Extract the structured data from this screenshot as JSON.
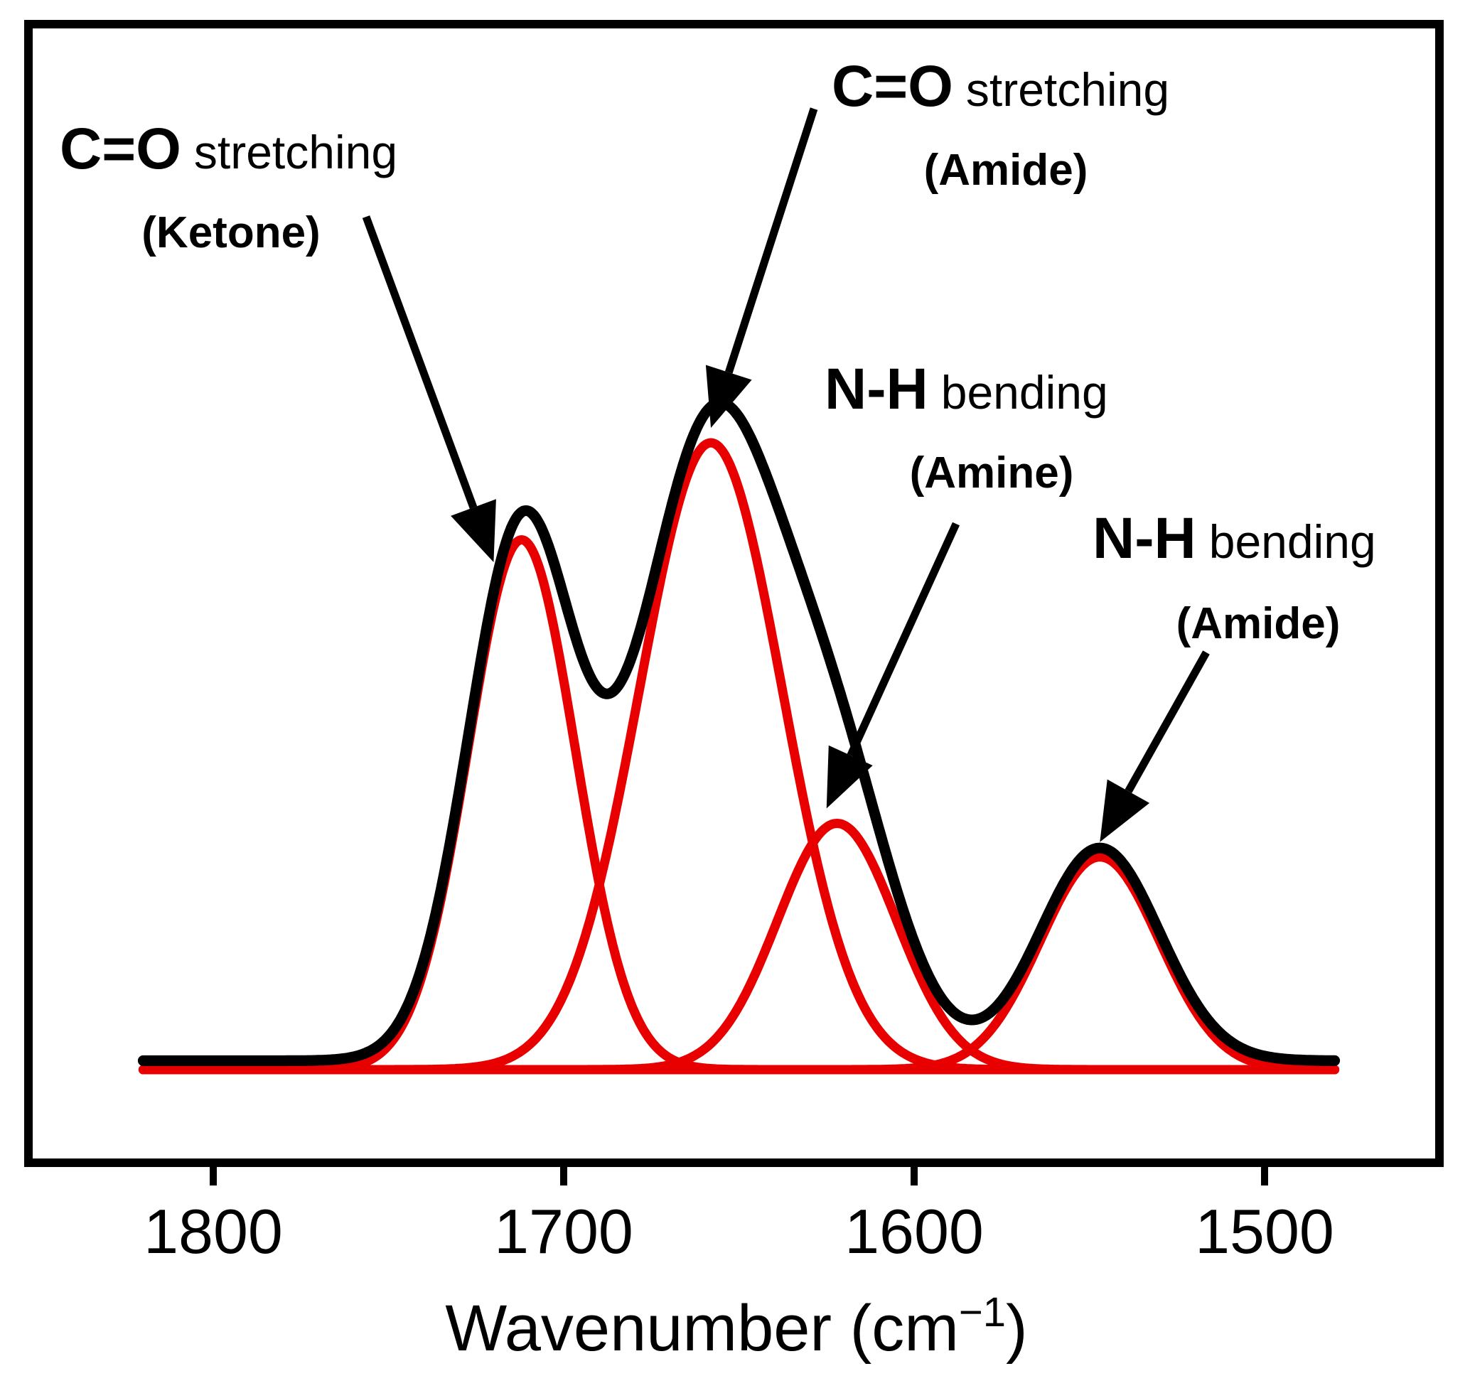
{
  "chart_data": {
    "type": "line",
    "title": "",
    "xlabel": "Wavenumber (cm",
    "xlabel_superscript": "−1",
    "xlabel_close": ")",
    "ylabel": "",
    "xlim": [
      1850,
      1465
    ],
    "x_reversed": true,
    "x_range_plotted": [
      1820,
      1480
    ],
    "xticks": [
      1800,
      1700,
      1600,
      1500
    ],
    "xtick_labels": [
      "1800",
      "1700",
      "1600",
      "1500"
    ],
    "yticks_shown": false,
    "colors": {
      "sum": "#000000",
      "component": "#e80000"
    },
    "baseline": 0.0,
    "summed_spectrum": {
      "name": "Spectrum",
      "color": "#000000"
    },
    "components": [
      {
        "name": "C=O stretching (Ketone)",
        "center": 1712,
        "height": 0.71,
        "fwhm": 36,
        "color": "#e80000"
      },
      {
        "name": "C=O stretching (Amide)",
        "center": 1658,
        "height": 0.84,
        "fwhm": 48,
        "color": "#e80000"
      },
      {
        "name": "N-H bending (Amine)",
        "center": 1622,
        "height": 0.33,
        "fwhm": 40,
        "color": "#e80000"
      },
      {
        "name": "N-H bending (Amide)",
        "center": 1547,
        "height": 0.285,
        "fwhm": 40,
        "color": "#e80000"
      }
    ],
    "annotations": [
      {
        "bold": "C=O",
        "regular": "stretching",
        "sub": "(Ketone)",
        "points_to_x": 1720,
        "points_to_y": 0.68
      },
      {
        "bold": "C=O",
        "regular": "stretching",
        "sub": "(Amide)",
        "points_to_x": 1658,
        "points_to_y": 0.86
      },
      {
        "bold": "N-H",
        "regular": "bending",
        "sub": "(Amine)",
        "points_to_x": 1625,
        "points_to_y": 0.35
      },
      {
        "bold": "N-H",
        "regular": "bending",
        "sub": "(Amide)",
        "points_to_x": 1547,
        "points_to_y": 0.305
      }
    ]
  }
}
